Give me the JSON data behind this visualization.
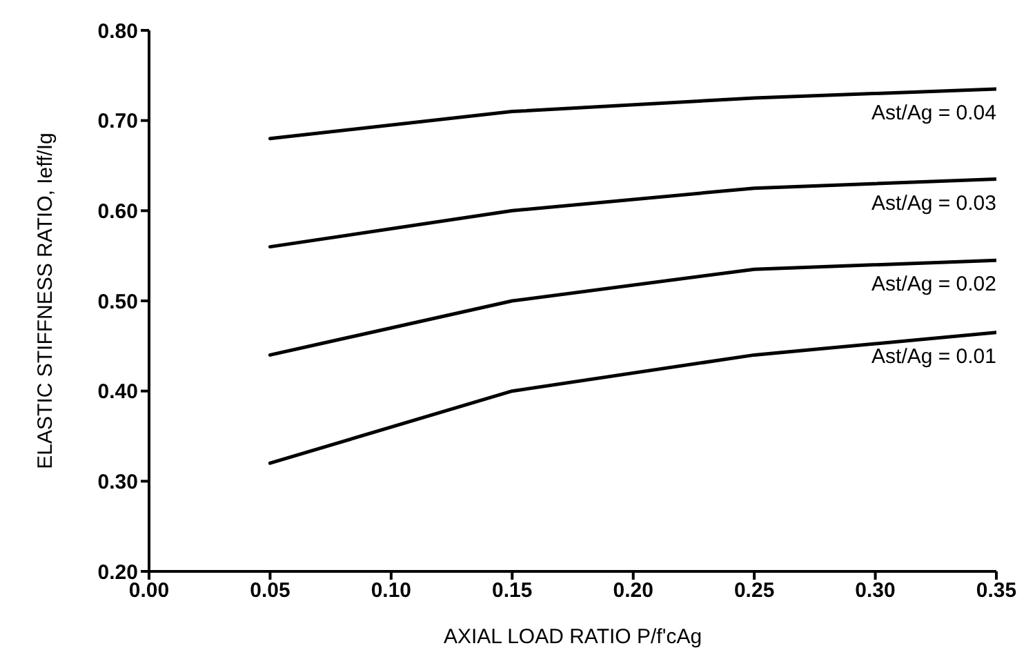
{
  "chart_data": {
    "type": "line",
    "xlabel": "AXIAL LOAD RATIO P/f'cAg",
    "ylabel": "ELASTIC STIFFNESS RATIO, Ieff/Ig",
    "x": [
      0.05,
      0.15,
      0.25,
      0.35
    ],
    "series": [
      {
        "name": "Ast/Ag = 0.04",
        "color": "#000000",
        "values": [
          0.68,
          0.71,
          0.725,
          0.735
        ]
      },
      {
        "name": "Ast/Ag = 0.03",
        "color": "#000000",
        "values": [
          0.56,
          0.6,
          0.625,
          0.635
        ]
      },
      {
        "name": "Ast/Ag = 0.02",
        "color": "#000000",
        "values": [
          0.44,
          0.5,
          0.535,
          0.545
        ]
      },
      {
        "name": "Ast/Ag = 0.01",
        "color": "#000000",
        "values": [
          0.32,
          0.4,
          0.44,
          0.465
        ]
      }
    ],
    "xlim": [
      0,
      0.35
    ],
    "xticks": [
      {
        "value": 0,
        "label": "0.00"
      },
      {
        "value": 0.05,
        "label": "0.05"
      },
      {
        "value": 0.1,
        "label": "0.10"
      },
      {
        "value": 0.15,
        "label": "0.15"
      },
      {
        "value": 0.2,
        "label": "0.20"
      },
      {
        "value": 0.25,
        "label": "0.25"
      },
      {
        "value": 0.3,
        "label": "0.30"
      },
      {
        "value": 0.35,
        "label": "0.35"
      }
    ],
    "ylim": [
      0.2,
      0.8
    ],
    "yticks": [
      {
        "value": 0.2,
        "label": "0.20"
      },
      {
        "value": 0.3,
        "label": "0.30"
      },
      {
        "value": 0.4,
        "label": "0.40"
      },
      {
        "value": 0.5,
        "label": "0.50"
      },
      {
        "value": 0.6,
        "label": "0.60"
      },
      {
        "value": 0.7,
        "label": "0.70"
      },
      {
        "value": 0.8,
        "label": "0.80"
      }
    ],
    "grid": false,
    "legend": false,
    "marker": "none",
    "line_style": "solid"
  }
}
